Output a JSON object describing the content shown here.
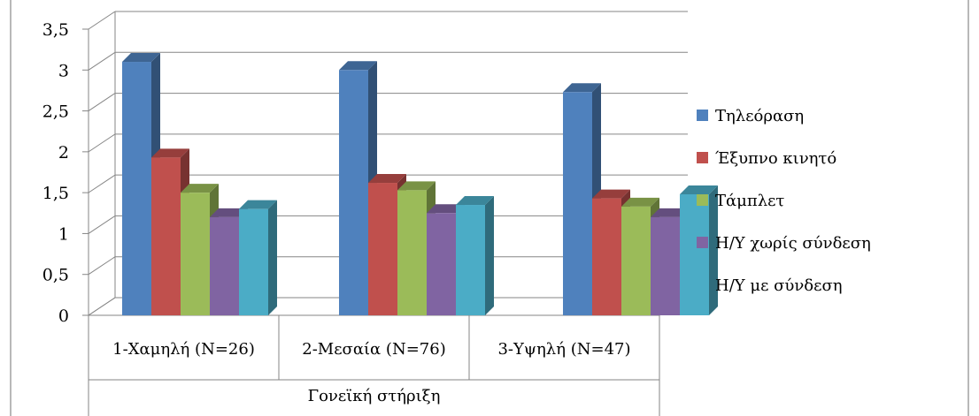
{
  "chart_data": {
    "type": "bar",
    "categories": [
      "1-Χαμηλή (N=26)",
      "2-Μεσαία (N=76)",
      "3-Υψηλή (N=47)"
    ],
    "group_label": "Γονεϊκή στήριξη",
    "series": [
      {
        "name": "Τηλεόραση",
        "values": [
          3.1,
          3.0,
          2.73
        ],
        "color": "#4F81BD"
      },
      {
        "name": "Έξυπνο κινητό",
        "values": [
          1.93,
          1.62,
          1.43
        ],
        "color": "#C0504D"
      },
      {
        "name": "Τάμπλετ",
        "values": [
          1.5,
          1.53,
          1.33
        ],
        "color": "#9BBB59"
      },
      {
        "name": "Η/Υ χωρίς σύνδεση",
        "values": [
          1.2,
          1.25,
          1.2
        ],
        "color": "#8064A2"
      },
      {
        "name": "Η/Υ με σύνδεση",
        "values": [
          1.3,
          1.35,
          1.48
        ],
        "color": "#4BACC6"
      }
    ],
    "y_ticks": [
      "0",
      "0,5",
      "1",
      "1,5",
      "2",
      "2,5",
      "3",
      "3,5"
    ],
    "ylim": [
      0,
      3.5
    ],
    "grid": true,
    "legend": "right",
    "style": "3d-clustered-column"
  }
}
